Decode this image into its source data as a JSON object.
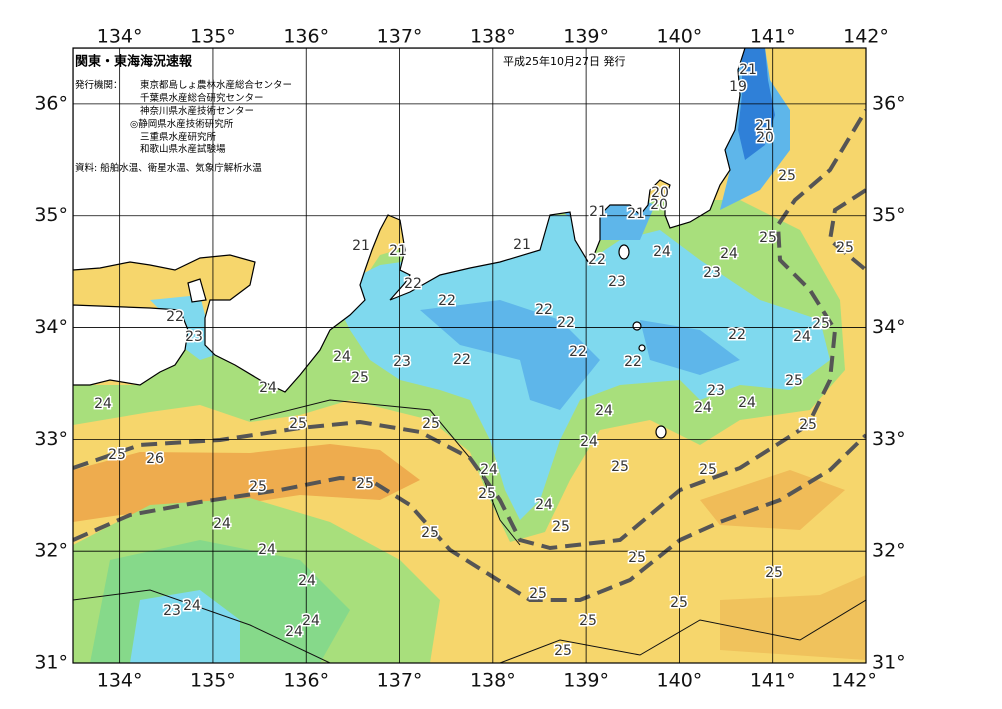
{
  "header": {
    "title": "関東・東海海況速報",
    "date": "平成25年10月27日 発行",
    "publisher_label": "発行機関：",
    "publishers": [
      "東京都島しょ農林水産総合センター",
      "千葉県水産総合研究センター",
      "神奈川県水産技術センター",
      "◎静岡県水産技術研究所",
      "三重県水産研究所",
      "和歌山県水産試験場"
    ],
    "sources": "資料: 船舶水温、衛星水温、気象庁解析水温"
  },
  "map": {
    "lonlim": [
      133.5,
      142
    ],
    "latlim": [
      31,
      36.5
    ],
    "lon_ticks": [
      {
        "value": 134,
        "label": "134°"
      },
      {
        "value": 135,
        "label": "135°"
      },
      {
        "value": 136,
        "label": "136°"
      },
      {
        "value": 137,
        "label": "137°"
      },
      {
        "value": 138,
        "label": "138°"
      },
      {
        "value": 139,
        "label": "139°"
      },
      {
        "value": 140,
        "label": "140°"
      },
      {
        "value": 141,
        "label": "141°"
      },
      {
        "value": 142,
        "label": "142°"
      }
    ],
    "lat_ticks": [
      {
        "value": 31,
        "label": "31°"
      },
      {
        "value": 32,
        "label": "32°"
      },
      {
        "value": 33,
        "label": "33°"
      },
      {
        "value": 34,
        "label": "34°"
      },
      {
        "value": 35,
        "label": "35°"
      },
      {
        "value": 36,
        "label": "36°"
      }
    ],
    "contour_labels": [
      21,
      19,
      21,
      20,
      25,
      20,
      20,
      21,
      21,
      25,
      25,
      21,
      21,
      21,
      22,
      24,
      24,
      23,
      23,
      22,
      22,
      22,
      22,
      22,
      23,
      25,
      22,
      24,
      22,
      22,
      22,
      24,
      23,
      25,
      25,
      24,
      24,
      23,
      24,
      24,
      24,
      25,
      25,
      25,
      24,
      25,
      26,
      25,
      25,
      24,
      25,
      25,
      25,
      24,
      24,
      25,
      25,
      24,
      25,
      25,
      24,
      25,
      25,
      24,
      23,
      24,
      24,
      25,
      25
    ]
  }
}
